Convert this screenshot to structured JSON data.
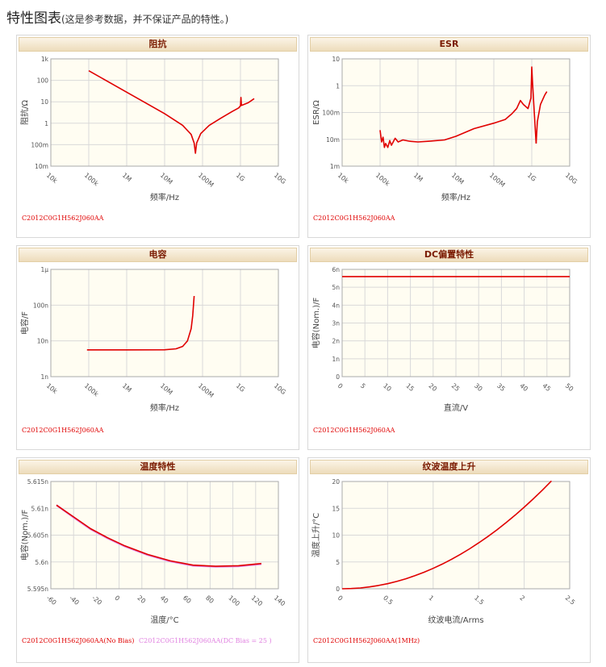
{
  "page": {
    "title": "特性图表",
    "subtitle": "(这是参考数据，并不保证产品的特性。)"
  },
  "part_number": "C2012C0G1H562J060AA",
  "colors": {
    "red": "#e00000",
    "pink": "#e080e0",
    "plot_bg": "#fffdf2",
    "grid": "#d9d9d9",
    "header_text": "#7a1a00"
  },
  "chart_data": [
    {
      "id": "impedance",
      "type": "line",
      "title": "阻抗",
      "xlabel": "频率/Hz",
      "ylabel": "阻抗/Ω",
      "x_scale": "log",
      "y_scale": "log",
      "xlim": [
        10000,
        10000000000
      ],
      "ylim": [
        0.01,
        1000
      ],
      "x_ticks": [
        10000,
        100000,
        1000000,
        10000000,
        100000000,
        1000000000,
        10000000000
      ],
      "x_tick_labels": [
        "10k",
        "100k",
        "1M",
        "10M",
        "100M",
        "1G",
        "10G"
      ],
      "y_ticks": [
        0.01,
        0.1,
        1,
        10,
        100,
        1000
      ],
      "y_tick_labels": [
        "10m",
        "100m",
        "1",
        "10",
        "100",
        "1k"
      ],
      "grid": true,
      "series": [
        {
          "color": "#e00000",
          "legend": "C2012C0G1H562J060AA",
          "points": [
            [
              100000,
              280
            ],
            [
              1000000,
              28
            ],
            [
              10000000,
              2.8
            ],
            [
              30000000,
              0.8
            ],
            [
              50000000,
              0.3
            ],
            [
              60000000,
              0.12
            ],
            [
              65000000,
              0.04
            ],
            [
              70000000,
              0.12
            ],
            [
              90000000,
              0.33
            ],
            [
              150000000,
              0.8
            ],
            [
              300000000,
              1.7
            ],
            [
              600000000,
              3.5
            ],
            [
              900000000,
              5.2
            ],
            [
              1000000000,
              6.5
            ],
            [
              1030000000,
              16
            ],
            [
              1060000000,
              6.8
            ],
            [
              1600000000,
              9
            ],
            [
              2300000000,
              14
            ]
          ]
        }
      ]
    },
    {
      "id": "esr",
      "type": "line",
      "title": "ESR",
      "xlabel": "频率/Hz",
      "ylabel": "ESR/Ω",
      "x_scale": "log",
      "y_scale": "log",
      "xlim": [
        10000,
        10000000000
      ],
      "ylim": [
        0.001,
        10
      ],
      "x_ticks": [
        10000,
        100000,
        1000000,
        10000000,
        100000000,
        1000000000,
        10000000000
      ],
      "x_tick_labels": [
        "10k",
        "100k",
        "1M",
        "10M",
        "100M",
        "1G",
        "10G"
      ],
      "y_ticks": [
        0.001,
        0.01,
        0.1,
        1,
        10
      ],
      "y_tick_labels": [
        "1m",
        "10m",
        "100m",
        "1",
        "10"
      ],
      "grid": true,
      "series": [
        {
          "color": "#e00000",
          "legend": "C2012C0G1H562J060AA",
          "points": [
            [
              100000,
              0.022
            ],
            [
              110000,
              0.008
            ],
            [
              120000,
              0.012
            ],
            [
              130000,
              0.005
            ],
            [
              140000,
              0.007
            ],
            [
              160000,
              0.005
            ],
            [
              180000,
              0.009
            ],
            [
              200000,
              0.006
            ],
            [
              250000,
              0.011
            ],
            [
              300000,
              0.008
            ],
            [
              400000,
              0.0095
            ],
            [
              600000,
              0.0085
            ],
            [
              1000000,
              0.008
            ],
            [
              2000000,
              0.0085
            ],
            [
              5000000,
              0.0095
            ],
            [
              10000000,
              0.013
            ],
            [
              30000000,
              0.025
            ],
            [
              100000000,
              0.04
            ],
            [
              200000000,
              0.055
            ],
            [
              300000000,
              0.09
            ],
            [
              400000000,
              0.14
            ],
            [
              500000000,
              0.28
            ],
            [
              600000000,
              0.2
            ],
            [
              800000000,
              0.14
            ],
            [
              950000000,
              0.35
            ],
            [
              1000000000,
              5
            ],
            [
              1050000000,
              1.2
            ],
            [
              1200000000,
              0.05
            ],
            [
              1300000000,
              0.007
            ]
          ]
        },
        {
          "color": "#e00000",
          "points": [
            [
              1300000000,
              0.007
            ],
            [
              1400000000,
              0.045
            ],
            [
              1700000000,
              0.2
            ],
            [
              2200000000,
              0.45
            ],
            [
              2500000000,
              0.6
            ]
          ]
        }
      ]
    },
    {
      "id": "capacitance",
      "type": "line",
      "title": "电容",
      "xlabel": "频率/Hz",
      "ylabel": "电容/F",
      "x_scale": "log",
      "y_scale": "log",
      "xlim": [
        10000,
        10000000000
      ],
      "ylim": [
        1e-09,
        1e-06
      ],
      "x_ticks": [
        10000,
        100000,
        1000000,
        10000000,
        100000000,
        1000000000,
        10000000000
      ],
      "x_tick_labels": [
        "10k",
        "100k",
        "1M",
        "10M",
        "100M",
        "1G",
        "10G"
      ],
      "y_ticks": [
        1e-09,
        1e-08,
        1e-07,
        1e-06
      ],
      "y_tick_labels": [
        "1n",
        "10n",
        "100n",
        "1μ"
      ],
      "grid": true,
      "series": [
        {
          "color": "#e00000",
          "legend": "C2012C0G1H562J060AA",
          "points": [
            [
              90000,
              5.6e-09
            ],
            [
              1000000,
              5.6e-09
            ],
            [
              10000000,
              5.65e-09
            ],
            [
              20000000,
              6e-09
            ],
            [
              30000000,
              7e-09
            ],
            [
              40000000,
              1e-08
            ],
            [
              50000000,
              2.2e-08
            ],
            [
              55000000,
              5e-08
            ],
            [
              60000000,
              1.8e-07
            ]
          ]
        }
      ]
    },
    {
      "id": "dc-bias",
      "type": "line",
      "title": "DC偏置特性",
      "xlabel": "直流/V",
      "ylabel": "电容(Nom.)/F",
      "xlim": [
        0,
        50
      ],
      "ylim": [
        0,
        6e-09
      ],
      "x_ticks": [
        0,
        5,
        10,
        15,
        20,
        25,
        30,
        35,
        40,
        45,
        50
      ],
      "x_tick_labels": [
        "0",
        "5",
        "10",
        "15",
        "20",
        "25",
        "30",
        "35",
        "40",
        "45",
        "50"
      ],
      "y_ticks": [
        0,
        1e-09,
        2e-09,
        3e-09,
        4e-09,
        5e-09,
        6e-09
      ],
      "y_tick_labels": [
        "0",
        "1n",
        "2n",
        "3n",
        "4n",
        "5n",
        "6n"
      ],
      "grid": true,
      "series": [
        {
          "color": "#e00000",
          "legend": "C2012C0G1H562J060AA",
          "points": [
            [
              0,
              5.6e-09
            ],
            [
              50,
              5.6e-09
            ]
          ]
        }
      ]
    },
    {
      "id": "temperature",
      "type": "line",
      "title": "温度特性",
      "xlabel": "温度/°C",
      "ylabel": "电容(Nom.)/F",
      "xlim": [
        -60,
        140
      ],
      "ylim": [
        5.595e-09,
        5.615e-09
      ],
      "x_ticks": [
        -60,
        -40,
        -20,
        0,
        20,
        40,
        60,
        80,
        100,
        120,
        140
      ],
      "x_tick_labels": [
        "-60",
        "-40",
        "-20",
        "0",
        "20",
        "40",
        "60",
        "80",
        "100",
        "120",
        "140"
      ],
      "y_ticks": [
        5.595e-09,
        5.6e-09,
        5.605e-09,
        5.61e-09,
        5.615e-09
      ],
      "y_tick_labels": [
        "5.595n",
        "5.6n",
        "5.605n",
        "5.61n",
        "5.615n"
      ],
      "grid": true,
      "series": [
        {
          "color": "#e080e0",
          "legend": "C2012C0G1H562J060AA(DC Bias = 25 )",
          "points": [
            [
              -55,
              5.6106e-09
            ],
            [
              -40,
              5.6083e-09
            ],
            [
              -25,
              5.6061e-09
            ],
            [
              -10,
              5.6044e-09
            ],
            [
              5,
              5.6029e-09
            ],
            [
              25,
              5.6013e-09
            ],
            [
              45,
              5.6001e-09
            ],
            [
              65,
              5.5993e-09
            ],
            [
              85,
              5.5991e-09
            ],
            [
              105,
              5.5992e-09
            ],
            [
              125,
              5.5996e-09
            ]
          ]
        },
        {
          "color": "#e00000",
          "legend": "C2012C0G1H562J060AA(No Bias)",
          "points": [
            [
              -55,
              5.6106e-09
            ],
            [
              -40,
              5.6084e-09
            ],
            [
              -25,
              5.6062e-09
            ],
            [
              -10,
              5.6045e-09
            ],
            [
              5,
              5.603e-09
            ],
            [
              25,
              5.6014e-09
            ],
            [
              45,
              5.6002e-09
            ],
            [
              65,
              5.5994e-09
            ],
            [
              85,
              5.5992e-09
            ],
            [
              105,
              5.5993e-09
            ],
            [
              125,
              5.5997e-09
            ]
          ]
        }
      ]
    },
    {
      "id": "ripple-temp-rise",
      "type": "line",
      "title": "纹波温度上升",
      "xlabel": "纹波电流/Arms",
      "ylabel": "温度上升/°C",
      "xlim": [
        0,
        2.5
      ],
      "ylim": [
        0,
        20
      ],
      "x_ticks": [
        0,
        0.5,
        1,
        1.5,
        2,
        2.5
      ],
      "x_tick_labels": [
        "0",
        "0.5",
        "1",
        "1.5",
        "2",
        "2.5"
      ],
      "y_ticks": [
        0,
        5,
        10,
        15,
        20
      ],
      "y_tick_labels": [
        "0",
        "5",
        "10",
        "15",
        "20"
      ],
      "grid": true,
      "series": [
        {
          "color": "#e00000",
          "legend": "C2012C0G1H562J060AA(1MHz)",
          "points": [
            [
              0,
              0
            ],
            [
              0.1,
              0.04
            ],
            [
              0.2,
              0.15
            ],
            [
              0.3,
              0.34
            ],
            [
              0.4,
              0.61
            ],
            [
              0.5,
              0.95
            ],
            [
              0.6,
              1.37
            ],
            [
              0.7,
              1.86
            ],
            [
              0.8,
              2.43
            ],
            [
              0.9,
              3.08
            ],
            [
              1,
              3.8
            ],
            [
              1.1,
              4.6
            ],
            [
              1.2,
              5.47
            ],
            [
              1.3,
              6.42
            ],
            [
              1.4,
              7.45
            ],
            [
              1.5,
              8.55
            ],
            [
              1.6,
              9.73
            ],
            [
              1.7,
              10.98
            ],
            [
              1.8,
              12.31
            ],
            [
              1.9,
              13.72
            ],
            [
              2,
              15.2
            ],
            [
              2.1,
              16.76
            ],
            [
              2.2,
              18.39
            ],
            [
              2.3,
              20.1
            ]
          ]
        }
      ]
    }
  ]
}
